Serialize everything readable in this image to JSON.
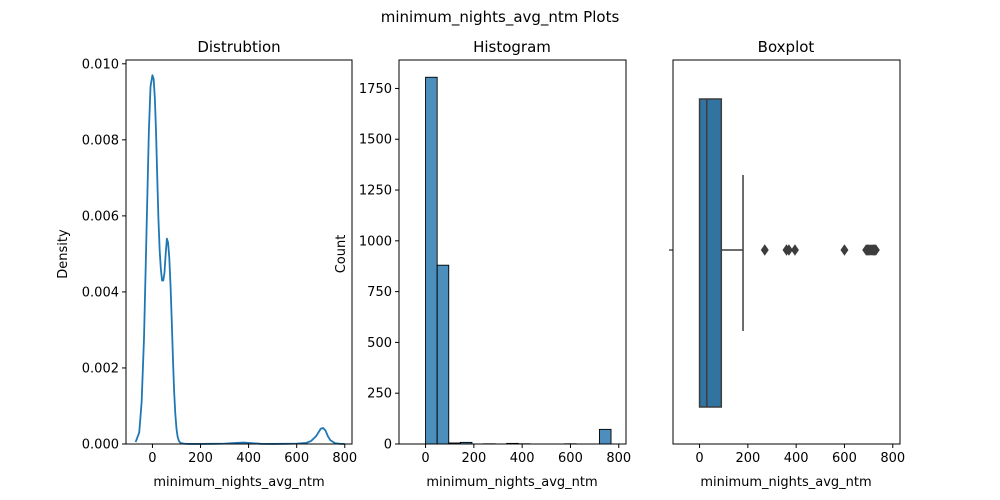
{
  "figure": {
    "suptitle": "minimum_nights_avg_ntm Plots"
  },
  "colors": {
    "line": "#1f77b4",
    "hist_fill": "#4c8fbd",
    "box_fill": "#3274a1",
    "box_edge": "#3d3d3d",
    "axes_edge": "#000000"
  },
  "chart_data": [
    {
      "type": "line",
      "title": "Distrubtion",
      "xlabel": "minimum_nights_avg_ntm",
      "ylabel": "Density",
      "xlim": [
        -110,
        830
      ],
      "ylim": [
        0,
        0.0101
      ],
      "xticks": [
        0,
        200,
        400,
        600,
        800
      ],
      "yticks": [
        0.0,
        0.002,
        0.004,
        0.006,
        0.008,
        0.01
      ],
      "ytick_labels": [
        "0.000",
        "0.002",
        "0.004",
        "0.006",
        "0.008",
        "0.010"
      ],
      "series": [
        {
          "x": [
            -70,
            -55,
            -45,
            -35,
            -25,
            -15,
            -8,
            0,
            5,
            10,
            15,
            20,
            25,
            30,
            35,
            40,
            45,
            50,
            55,
            60,
            65,
            70,
            75,
            80,
            85,
            90,
            95,
            100,
            105,
            110,
            115,
            120,
            130,
            140,
            160,
            180,
            200,
            250,
            300,
            350,
            380,
            400,
            450,
            500,
            550,
            600,
            640,
            660,
            680,
            690,
            700,
            710,
            720,
            730,
            740,
            760,
            780,
            800
          ],
          "y": [
            5e-05,
            0.0003,
            0.0011,
            0.0028,
            0.0055,
            0.0082,
            0.0094,
            0.0097,
            0.0096,
            0.0091,
            0.0082,
            0.007,
            0.0059,
            0.0051,
            0.0046,
            0.0043,
            0.0043,
            0.0045,
            0.005,
            0.0054,
            0.0053,
            0.0049,
            0.0042,
            0.0033,
            0.0023,
            0.0014,
            0.0008,
            0.0004,
            0.00018,
            8e-05,
            4e-05,
            2e-05,
            1e-05,
            5e-06,
            2e-06,
            1e-06,
            1e-06,
            5e-06,
            1e-05,
            3e-05,
            4e-05,
            3e-05,
            5e-06,
            2e-06,
            5e-06,
            1e-05,
            3e-05,
            8e-05,
            0.0002,
            0.0003,
            0.0004,
            0.00042,
            0.00035,
            0.0002,
            0.0001,
            2e-05,
            5e-06,
            0.0
          ]
        }
      ]
    },
    {
      "type": "bar",
      "title": "Histogram",
      "xlabel": "minimum_nights_avg_ntm",
      "ylabel": "Count",
      "xlim": [
        -110,
        830
      ],
      "ylim": [
        0,
        1890
      ],
      "xticks": [
        0,
        200,
        400,
        600,
        800
      ],
      "yticks": [
        0,
        250,
        500,
        750,
        1000,
        1250,
        1500,
        1750
      ],
      "bins": [
        {
          "x0": 0,
          "x1": 48,
          "count": 1805
        },
        {
          "x0": 48,
          "x1": 96,
          "count": 880
        },
        {
          "x0": 96,
          "x1": 144,
          "count": 5
        },
        {
          "x0": 144,
          "x1": 192,
          "count": 8
        },
        {
          "x0": 192,
          "x1": 240,
          "count": 0
        },
        {
          "x0": 240,
          "x1": 288,
          "count": 1
        },
        {
          "x0": 288,
          "x1": 336,
          "count": 0
        },
        {
          "x0": 336,
          "x1": 384,
          "count": 3
        },
        {
          "x0": 384,
          "x1": 432,
          "count": 1
        },
        {
          "x0": 432,
          "x1": 480,
          "count": 0
        },
        {
          "x0": 480,
          "x1": 528,
          "count": 0
        },
        {
          "x0": 528,
          "x1": 576,
          "count": 0
        },
        {
          "x0": 576,
          "x1": 624,
          "count": 1
        },
        {
          "x0": 624,
          "x1": 672,
          "count": 0
        },
        {
          "x0": 672,
          "x1": 720,
          "count": 0
        },
        {
          "x0": 720,
          "x1": 768,
          "count": 72
        }
      ]
    },
    {
      "type": "box",
      "title": "Boxplot",
      "xlabel": "minimum_nights_avg_ntm",
      "xlim": [
        -110,
        830
      ],
      "xticks": [
        0,
        200,
        400,
        600,
        800
      ],
      "box": {
        "whisker_low": 0,
        "q1": 0,
        "median": 30,
        "q3": 90,
        "whisker_high": 180
      },
      "outliers": [
        270,
        360,
        370,
        395,
        600,
        690,
        695,
        700,
        705,
        710,
        715,
        720,
        725,
        730
      ]
    }
  ]
}
